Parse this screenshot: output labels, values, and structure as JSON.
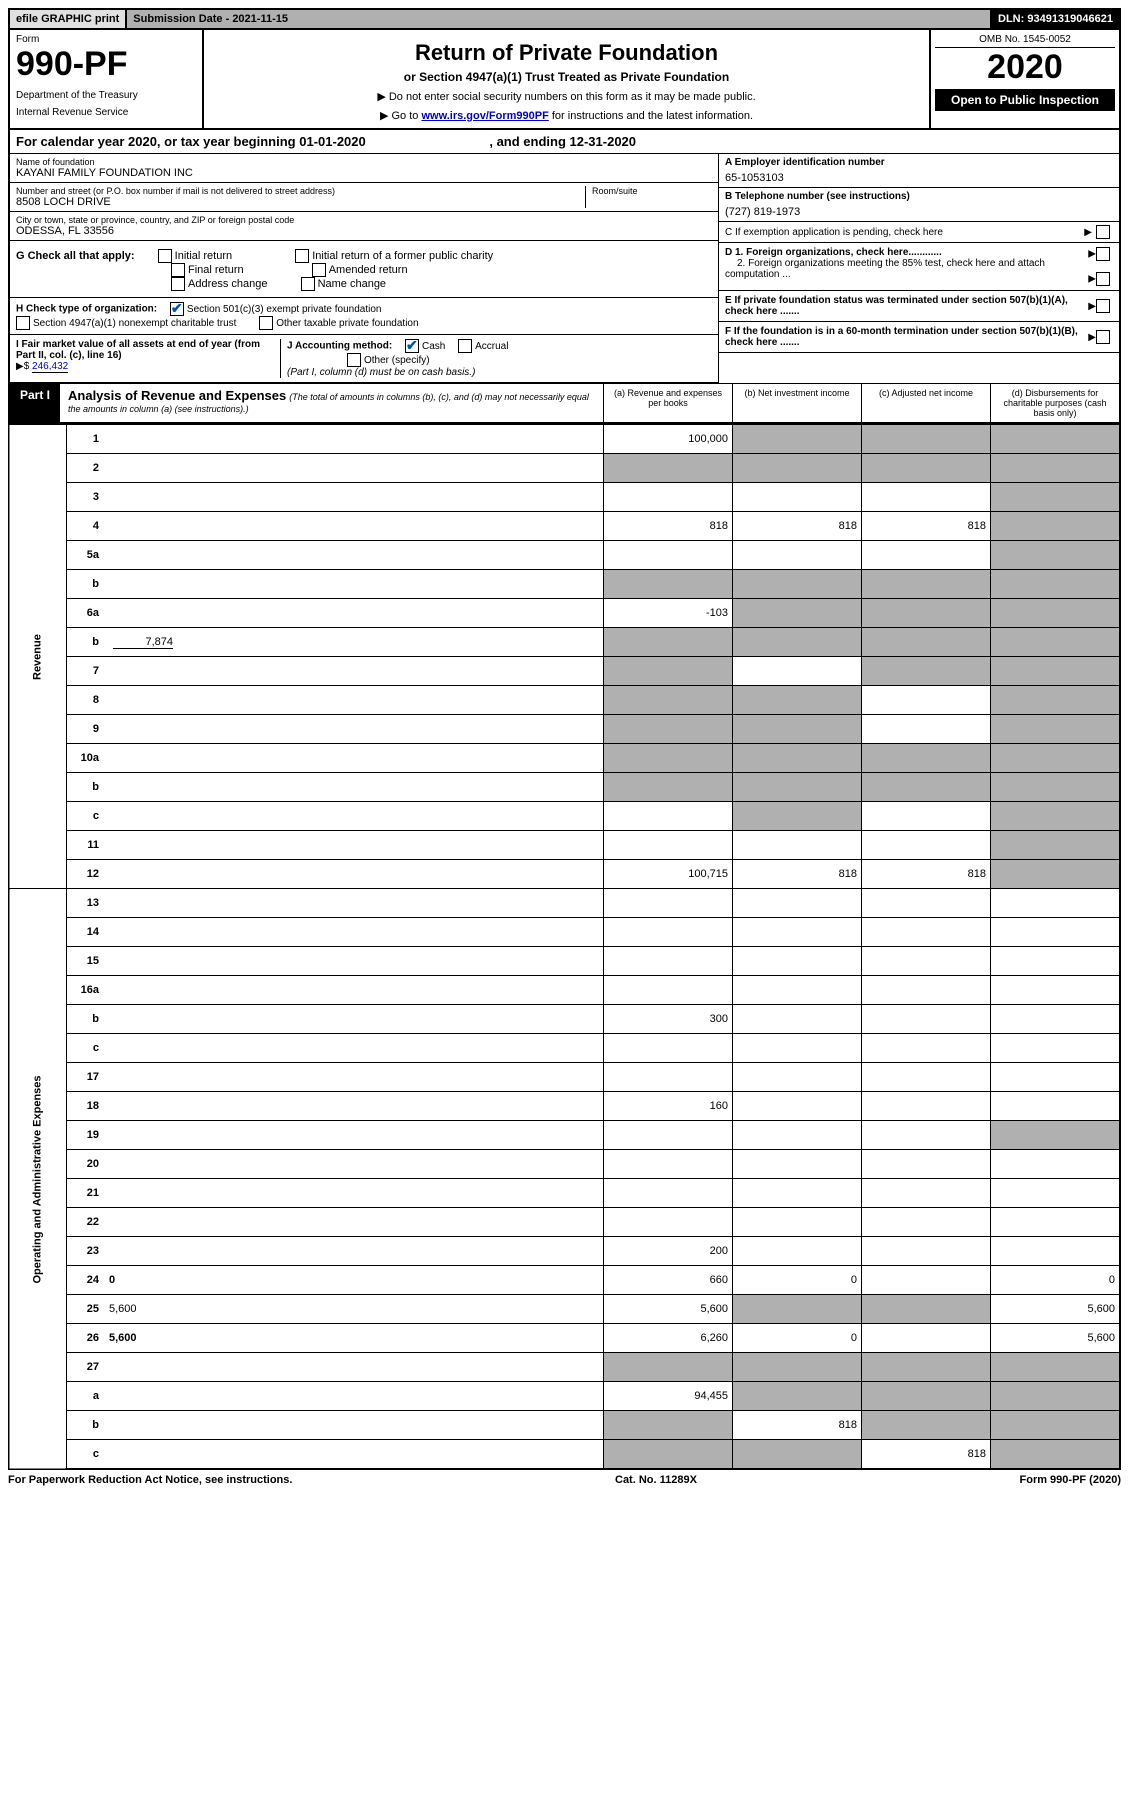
{
  "top": {
    "efile": "efile GRAPHIC print",
    "submission": "Submission Date - 2021-11-15",
    "dln": "DLN: 93491319046621"
  },
  "header": {
    "form_label": "Form",
    "form_num": "990-PF",
    "dept": "Department of the Treasury",
    "irs": "Internal Revenue Service",
    "title": "Return of Private Foundation",
    "subtitle": "or Section 4947(a)(1) Trust Treated as Private Foundation",
    "note1": "▶ Do not enter social security numbers on this form as it may be made public.",
    "note2_pre": "▶ Go to ",
    "note2_link": "www.irs.gov/Form990PF",
    "note2_post": " for instructions and the latest information.",
    "omb": "OMB No. 1545-0052",
    "year": "2020",
    "open": "Open to Public Inspection"
  },
  "cal": {
    "pre": "For calendar year 2020, or tax year beginning ",
    "begin": "01-01-2020",
    "mid": " , and ending ",
    "end": "12-31-2020"
  },
  "info": {
    "name_label": "Name of foundation",
    "name": "KAYANI FAMILY FOUNDATION INC",
    "addr_label": "Number and street (or P.O. box number if mail is not delivered to street address)",
    "addr": "8508 LOCH DRIVE",
    "room_label": "Room/suite",
    "city_label": "City or town, state or province, country, and ZIP or foreign postal code",
    "city": "ODESSA, FL  33556",
    "a_label": "A Employer identification number",
    "a_val": "65-1053103",
    "b_label": "B Telephone number (see instructions)",
    "b_val": "(727) 819-1973",
    "c_label": "C If exemption application is pending, check here",
    "d1": "D 1. Foreign organizations, check here............",
    "d2": "2. Foreign organizations meeting the 85% test, check here and attach computation ...",
    "e_label": "E  If private foundation status was terminated under section 507(b)(1)(A), check here .......",
    "f_label": "F  If the foundation is in a 60-month termination under section 507(b)(1)(B), check here ......."
  },
  "g": {
    "label": "G Check all that apply:",
    "opts": [
      "Initial return",
      "Final return",
      "Address change",
      "Initial return of a former public charity",
      "Amended return",
      "Name change"
    ]
  },
  "h": {
    "label": "H Check type of organization:",
    "opt1": "Section 501(c)(3) exempt private foundation",
    "opt2": "Section 4947(a)(1) nonexempt charitable trust",
    "opt3": "Other taxable private foundation"
  },
  "i": {
    "label": "I Fair market value of all assets at end of year (from Part II, col. (c), line 16)",
    "arrow": "▶$",
    "val": "246,432"
  },
  "j": {
    "label": "J Accounting method:",
    "cash": "Cash",
    "accrual": "Accrual",
    "other": "Other (specify)",
    "note": "(Part I, column (d) must be on cash basis.)"
  },
  "part1": {
    "label": "Part I",
    "title": "Analysis of Revenue and Expenses",
    "note": "(The total of amounts in columns (b), (c), and (d) may not necessarily equal the amounts in column (a) (see instructions).)",
    "col_a": "(a) Revenue and expenses per books",
    "col_b": "(b) Net investment income",
    "col_c": "(c) Adjusted net income",
    "col_d": "(d) Disbursements for charitable purposes (cash basis only)"
  },
  "sections": {
    "revenue": "Revenue",
    "operating": "Operating and Administrative Expenses"
  },
  "rows": [
    {
      "n": "1",
      "d": "",
      "a": "100,000",
      "b": "",
      "c": "",
      "sb": true,
      "sc": true,
      "sd": true
    },
    {
      "n": "2",
      "d": "",
      "a": "",
      "b": "",
      "c": "",
      "sa": true,
      "sb": true,
      "sc": true,
      "sd": true
    },
    {
      "n": "3",
      "d": "",
      "a": "",
      "b": "",
      "c": "",
      "sd": true
    },
    {
      "n": "4",
      "d": "",
      "a": "818",
      "b": "818",
      "c": "818",
      "sd": true
    },
    {
      "n": "5a",
      "d": "",
      "a": "",
      "b": "",
      "c": "",
      "sd": true
    },
    {
      "n": "b",
      "d": "",
      "a": "",
      "b": "",
      "c": "",
      "sa": true,
      "sb": true,
      "sc": true,
      "sd": true
    },
    {
      "n": "6a",
      "d": "",
      "a": "-103",
      "b": "",
      "c": "",
      "sb": true,
      "sc": true,
      "sd": true
    },
    {
      "n": "b",
      "d": "",
      "sub": "7,874",
      "a": "",
      "b": "",
      "c": "",
      "sa": true,
      "sb": true,
      "sc": true,
      "sd": true
    },
    {
      "n": "7",
      "d": "",
      "a": "",
      "b": "",
      "c": "",
      "sa": true,
      "sc": true,
      "sd": true
    },
    {
      "n": "8",
      "d": "",
      "a": "",
      "b": "",
      "c": "",
      "sa": true,
      "sb": true,
      "sd": true
    },
    {
      "n": "9",
      "d": "",
      "a": "",
      "b": "",
      "c": "",
      "sa": true,
      "sb": true,
      "sd": true
    },
    {
      "n": "10a",
      "d": "",
      "a": "",
      "b": "",
      "c": "",
      "sa": true,
      "sb": true,
      "sc": true,
      "sd": true
    },
    {
      "n": "b",
      "d": "",
      "a": "",
      "b": "",
      "c": "",
      "sa": true,
      "sb": true,
      "sc": true,
      "sd": true
    },
    {
      "n": "c",
      "d": "",
      "a": "",
      "b": "",
      "c": "",
      "sb": true,
      "sd": true
    },
    {
      "n": "11",
      "d": "",
      "a": "",
      "b": "",
      "c": "",
      "sd": true
    },
    {
      "n": "12",
      "d": "",
      "bold": true,
      "a": "100,715",
      "b": "818",
      "c": "818",
      "sd": true
    },
    {
      "n": "13",
      "d": "",
      "a": "",
      "b": "",
      "c": ""
    },
    {
      "n": "14",
      "d": "",
      "a": "",
      "b": "",
      "c": ""
    },
    {
      "n": "15",
      "d": "",
      "a": "",
      "b": "",
      "c": ""
    },
    {
      "n": "16a",
      "d": "",
      "a": "",
      "b": "",
      "c": ""
    },
    {
      "n": "b",
      "d": "",
      "a": "300",
      "b": "",
      "c": ""
    },
    {
      "n": "c",
      "d": "",
      "a": "",
      "b": "",
      "c": ""
    },
    {
      "n": "17",
      "d": "",
      "a": "",
      "b": "",
      "c": ""
    },
    {
      "n": "18",
      "d": "",
      "a": "160",
      "b": "",
      "c": ""
    },
    {
      "n": "19",
      "d": "",
      "a": "",
      "b": "",
      "c": "",
      "sd": true
    },
    {
      "n": "20",
      "d": "",
      "a": "",
      "b": "",
      "c": ""
    },
    {
      "n": "21",
      "d": "",
      "a": "",
      "b": "",
      "c": ""
    },
    {
      "n": "22",
      "d": "",
      "a": "",
      "b": "",
      "c": ""
    },
    {
      "n": "23",
      "d": "",
      "a": "200",
      "b": "",
      "c": ""
    },
    {
      "n": "24",
      "d": "0",
      "bold": true,
      "a": "660",
      "b": "0",
      "c": ""
    },
    {
      "n": "25",
      "d": "5,600",
      "a": "5,600",
      "b": "",
      "c": "",
      "sb": true,
      "sc": true
    },
    {
      "n": "26",
      "d": "5,600",
      "bold": true,
      "a": "6,260",
      "b": "0",
      "c": ""
    },
    {
      "n": "27",
      "d": "",
      "a": "",
      "b": "",
      "c": "",
      "sa": true,
      "sb": true,
      "sc": true,
      "sd": true
    },
    {
      "n": "a",
      "d": "",
      "bold": true,
      "a": "94,455",
      "b": "",
      "c": "",
      "sb": true,
      "sc": true,
      "sd": true
    },
    {
      "n": "b",
      "d": "",
      "bold": true,
      "a": "",
      "b": "818",
      "c": "",
      "sa": true,
      "sc": true,
      "sd": true
    },
    {
      "n": "c",
      "d": "",
      "bold": true,
      "a": "",
      "b": "",
      "c": "818",
      "sa": true,
      "sb": true,
      "sd": true
    }
  ],
  "footer": {
    "left": "For Paperwork Reduction Act Notice, see instructions.",
    "mid": "Cat. No. 11289X",
    "right": "Form 990-PF (2020)"
  }
}
